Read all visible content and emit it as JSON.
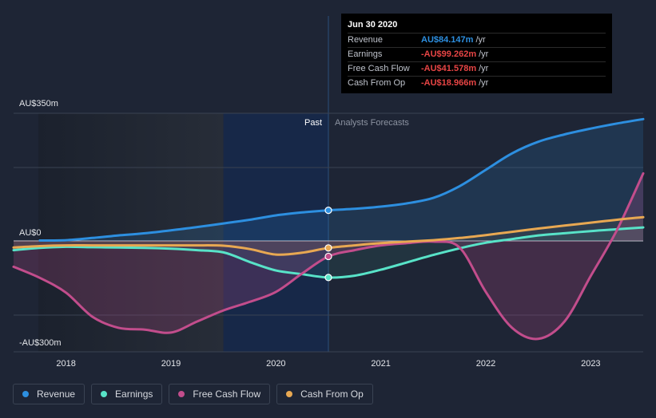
{
  "chart_data": {
    "type": "line",
    "title": "",
    "xlabel": "",
    "ylabel": "",
    "ylim": [
      -300,
      350
    ],
    "xlim": [
      2017.5,
      2023.5
    ],
    "x_ticks": [
      "2018",
      "2019",
      "2020",
      "2021",
      "2022",
      "2023"
    ],
    "y_tick_labels": {
      "top": "AU$350m",
      "zero": "AU$0",
      "bottom": "-AU$300m"
    },
    "region_labels": {
      "past": "Past",
      "forecast": "Analysts Forecasts"
    },
    "past_until": 2020.5,
    "series": [
      {
        "name": "Revenue",
        "color": "#2d8fe0",
        "x": [
          2017.75,
          2018.0,
          2018.25,
          2018.5,
          2018.75,
          2019.0,
          2019.25,
          2019.5,
          2019.75,
          2020.0,
          2020.25,
          2020.5,
          2020.75,
          2021.0,
          2021.25,
          2021.5,
          2021.75,
          2022.0,
          2022.25,
          2022.5,
          2022.75,
          2023.0,
          2023.25,
          2023.5
        ],
        "values": [
          1,
          2,
          8,
          15,
          21,
          29,
          38,
          48,
          58,
          70,
          78,
          84,
          88,
          94,
          103,
          118,
          150,
          195,
          240,
          272,
          292,
          308,
          322,
          334
        ]
      },
      {
        "name": "Earnings",
        "color": "#58e3c8",
        "x": [
          2017.5,
          2017.75,
          2018.0,
          2018.25,
          2018.5,
          2018.75,
          2019.0,
          2019.25,
          2019.5,
          2019.75,
          2020.0,
          2020.25,
          2020.5,
          2020.75,
          2021.0,
          2021.25,
          2021.5,
          2021.75,
          2022.0,
          2022.25,
          2022.5,
          2022.75,
          2023.0,
          2023.25,
          2023.5
        ],
        "values": [
          -25,
          -19,
          -16,
          -17,
          -18,
          -19,
          -21,
          -25,
          -31,
          -57,
          -80,
          -90,
          -99,
          -94,
          -78,
          -58,
          -38,
          -20,
          -5,
          5,
          15,
          21,
          27,
          32,
          37
        ]
      },
      {
        "name": "Free Cash Flow",
        "color": "#c24d8c",
        "x": [
          2017.5,
          2017.75,
          2018.0,
          2018.25,
          2018.5,
          2018.75,
          2019.0,
          2019.25,
          2019.5,
          2019.75,
          2020.0,
          2020.25,
          2020.5,
          2020.75,
          2021.0,
          2021.25,
          2021.5,
          2021.75,
          2022.0,
          2022.25,
          2022.5,
          2022.75,
          2023.0,
          2023.25,
          2023.5
        ],
        "values": [
          -70,
          -100,
          -140,
          -205,
          -235,
          -240,
          -248,
          -218,
          -188,
          -165,
          -138,
          -88,
          -42,
          -25,
          -12,
          -6,
          -2,
          -18,
          -138,
          -235,
          -265,
          -218,
          -95,
          30,
          185
        ]
      },
      {
        "name": "Cash From Op",
        "color": "#e8a852",
        "x": [
          2017.5,
          2017.75,
          2018.0,
          2018.25,
          2018.5,
          2018.75,
          2019.0,
          2019.25,
          2019.5,
          2019.75,
          2020.0,
          2020.25,
          2020.5,
          2020.75,
          2021.0,
          2021.25,
          2021.5,
          2021.75,
          2022.0,
          2022.25,
          2022.5,
          2022.75,
          2023.0,
          2023.25,
          2023.5
        ],
        "values": [
          -18,
          -14,
          -12,
          -12,
          -12,
          -12,
          -12,
          -12,
          -13,
          -22,
          -37,
          -32,
          -19,
          -12,
          -6,
          -2,
          2,
          8,
          16,
          25,
          34,
          42,
          50,
          58,
          65
        ]
      }
    ],
    "highlight_x": 2020.5
  },
  "tooltip": {
    "date": "Jun 30 2020",
    "rows": [
      {
        "label": "Revenue",
        "value": "AU$84.147m",
        "unit": "/yr",
        "color": "#2d8fe0"
      },
      {
        "label": "Earnings",
        "value": "-AU$99.262m",
        "unit": "/yr",
        "color": "#e84545"
      },
      {
        "label": "Free Cash Flow",
        "value": "-AU$41.578m",
        "unit": "/yr",
        "color": "#e84545"
      },
      {
        "label": "Cash From Op",
        "value": "-AU$18.966m",
        "unit": "/yr",
        "color": "#e84545"
      }
    ]
  },
  "legend": [
    {
      "label": "Revenue",
      "color": "#2d8fe0"
    },
    {
      "label": "Earnings",
      "color": "#58e3c8"
    },
    {
      "label": "Free Cash Flow",
      "color": "#c24d8c"
    },
    {
      "label": "Cash From Op",
      "color": "#e8a852"
    }
  ]
}
